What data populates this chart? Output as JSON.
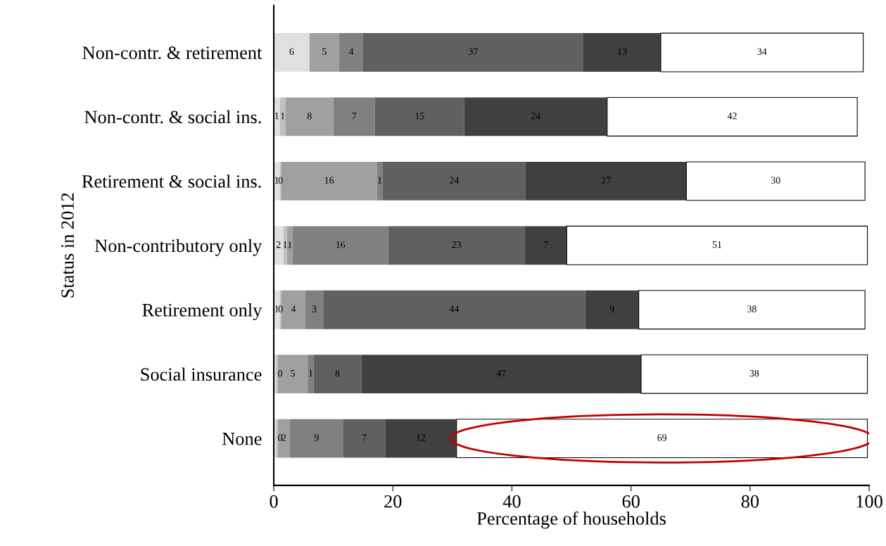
{
  "chart_data": {
    "type": "bar",
    "orientation": "horizontal",
    "stacked": true,
    "categories": [
      "Non-contr. & retirement",
      "Non-contr. & social ins.",
      "Retirement & social ins.",
      "Non-contributory only",
      "Retirement only",
      "Social insurance",
      "None"
    ],
    "series": [
      {
        "color": "#e0e0e0",
        "values": [
          6,
          1,
          1,
          1.6,
          1,
          0.4,
          0.4
        ],
        "value_labels": [
          "6",
          "1",
          "1",
          "2",
          "1",
          "0",
          "0"
        ]
      },
      {
        "color": "#c0c0c0",
        "values": [
          null,
          1,
          0.3,
          0.6,
          0.3,
          0.3,
          0.3
        ],
        "value_labels": [
          null,
          "1",
          "0",
          "1",
          "0",
          null,
          null
        ]
      },
      {
        "color": "#a0a0a0",
        "values": [
          5,
          8,
          16,
          1,
          4,
          5,
          2
        ],
        "value_labels": [
          "5",
          "8",
          "16",
          "1",
          "4",
          "5",
          "2"
        ]
      },
      {
        "color": "#808080",
        "values": [
          4,
          7,
          1,
          16,
          3,
          1,
          9
        ],
        "value_labels": [
          "4",
          "7",
          "1",
          "16",
          "3",
          "1",
          "9"
        ]
      },
      {
        "color": "#606060",
        "values": [
          37,
          15,
          24,
          23,
          44,
          8,
          7
        ],
        "value_labels": [
          "37",
          "15",
          "24",
          "23",
          "44",
          "8",
          "7"
        ]
      },
      {
        "color": "#404040",
        "values": [
          13,
          24,
          27,
          7,
          9,
          47,
          12
        ],
        "value_labels": [
          "13",
          "24",
          "27",
          "7",
          "9",
          "47",
          "12"
        ]
      },
      {
        "color": "#ffffff",
        "values": [
          34,
          42,
          30,
          50.5,
          38,
          38,
          69
        ],
        "value_labels": [
          "34",
          "42",
          "30",
          "51",
          "38",
          "38",
          "69"
        ]
      }
    ],
    "xlim": [
      0,
      100
    ],
    "xticks": [
      0,
      20,
      40,
      60,
      80,
      100
    ],
    "xlabel": "Percentage of households",
    "ylabel": "Status in 2012",
    "grid": false
  }
}
